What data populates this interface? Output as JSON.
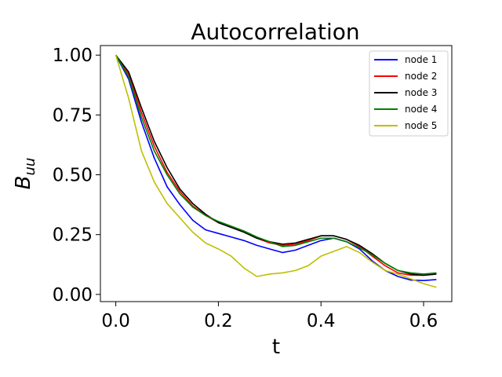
{
  "chart_data": {
    "type": "line",
    "title": "Autocorrelation",
    "xlabel": "t",
    "ylabel": "B",
    "ylabel_sub": "uu",
    "xlim": [
      -0.03,
      0.655
    ],
    "ylim": [
      -0.03,
      1.04
    ],
    "xticks": [
      {
        "value": 0.0,
        "label": "0.0"
      },
      {
        "value": 0.2,
        "label": "0.2"
      },
      {
        "value": 0.4,
        "label": "0.4"
      },
      {
        "value": 0.6,
        "label": "0.6"
      }
    ],
    "yticks": [
      {
        "value": 0.0,
        "label": "0.00"
      },
      {
        "value": 0.25,
        "label": "0.25"
      },
      {
        "value": 0.5,
        "label": "0.50"
      },
      {
        "value": 0.75,
        "label": "0.75"
      },
      {
        "value": 1.0,
        "label": "1.00"
      }
    ],
    "grid": false,
    "legend_position": "top-right",
    "x": [
      0.0,
      0.025,
      0.05,
      0.075,
      0.1,
      0.125,
      0.15,
      0.175,
      0.2,
      0.225,
      0.25,
      0.275,
      0.3,
      0.325,
      0.35,
      0.375,
      0.4,
      0.425,
      0.45,
      0.475,
      0.5,
      0.525,
      0.55,
      0.575,
      0.6,
      0.625
    ],
    "series": [
      {
        "name": "node 1",
        "color": "#0000ff",
        "values": [
          1.0,
          0.9,
          0.72,
          0.57,
          0.45,
          0.375,
          0.31,
          0.27,
          0.255,
          0.24,
          0.225,
          0.205,
          0.19,
          0.175,
          0.185,
          0.205,
          0.225,
          0.235,
          0.22,
          0.19,
          0.14,
          0.1,
          0.075,
          0.06,
          0.058,
          0.062
        ]
      },
      {
        "name": "node 2",
        "color": "#ff0000",
        "values": [
          1.0,
          0.92,
          0.76,
          0.62,
          0.51,
          0.43,
          0.37,
          0.33,
          0.3,
          0.28,
          0.26,
          0.235,
          0.215,
          0.205,
          0.21,
          0.225,
          0.245,
          0.245,
          0.23,
          0.2,
          0.16,
          0.12,
          0.09,
          0.08,
          0.08,
          0.085
        ]
      },
      {
        "name": "node 3",
        "color": "#000000",
        "values": [
          1.0,
          0.93,
          0.78,
          0.64,
          0.53,
          0.44,
          0.38,
          0.335,
          0.3,
          0.28,
          0.26,
          0.235,
          0.22,
          0.21,
          0.215,
          0.23,
          0.245,
          0.245,
          0.23,
          0.205,
          0.17,
          0.13,
          0.1,
          0.085,
          0.08,
          0.085
        ]
      },
      {
        "name": "node 4",
        "color": "#008000",
        "values": [
          1.0,
          0.91,
          0.74,
          0.6,
          0.5,
          0.42,
          0.365,
          0.33,
          0.305,
          0.285,
          0.265,
          0.24,
          0.22,
          0.2,
          0.205,
          0.22,
          0.235,
          0.235,
          0.22,
          0.195,
          0.165,
          0.13,
          0.1,
          0.09,
          0.085,
          0.09
        ]
      },
      {
        "name": "node 5",
        "color": "#bfbf00",
        "values": [
          1.0,
          0.82,
          0.6,
          0.47,
          0.38,
          0.32,
          0.26,
          0.215,
          0.19,
          0.16,
          0.11,
          0.075,
          0.085,
          0.09,
          0.1,
          0.12,
          0.16,
          0.18,
          0.2,
          0.175,
          0.135,
          0.1,
          0.085,
          0.065,
          0.045,
          0.03
        ]
      }
    ]
  }
}
